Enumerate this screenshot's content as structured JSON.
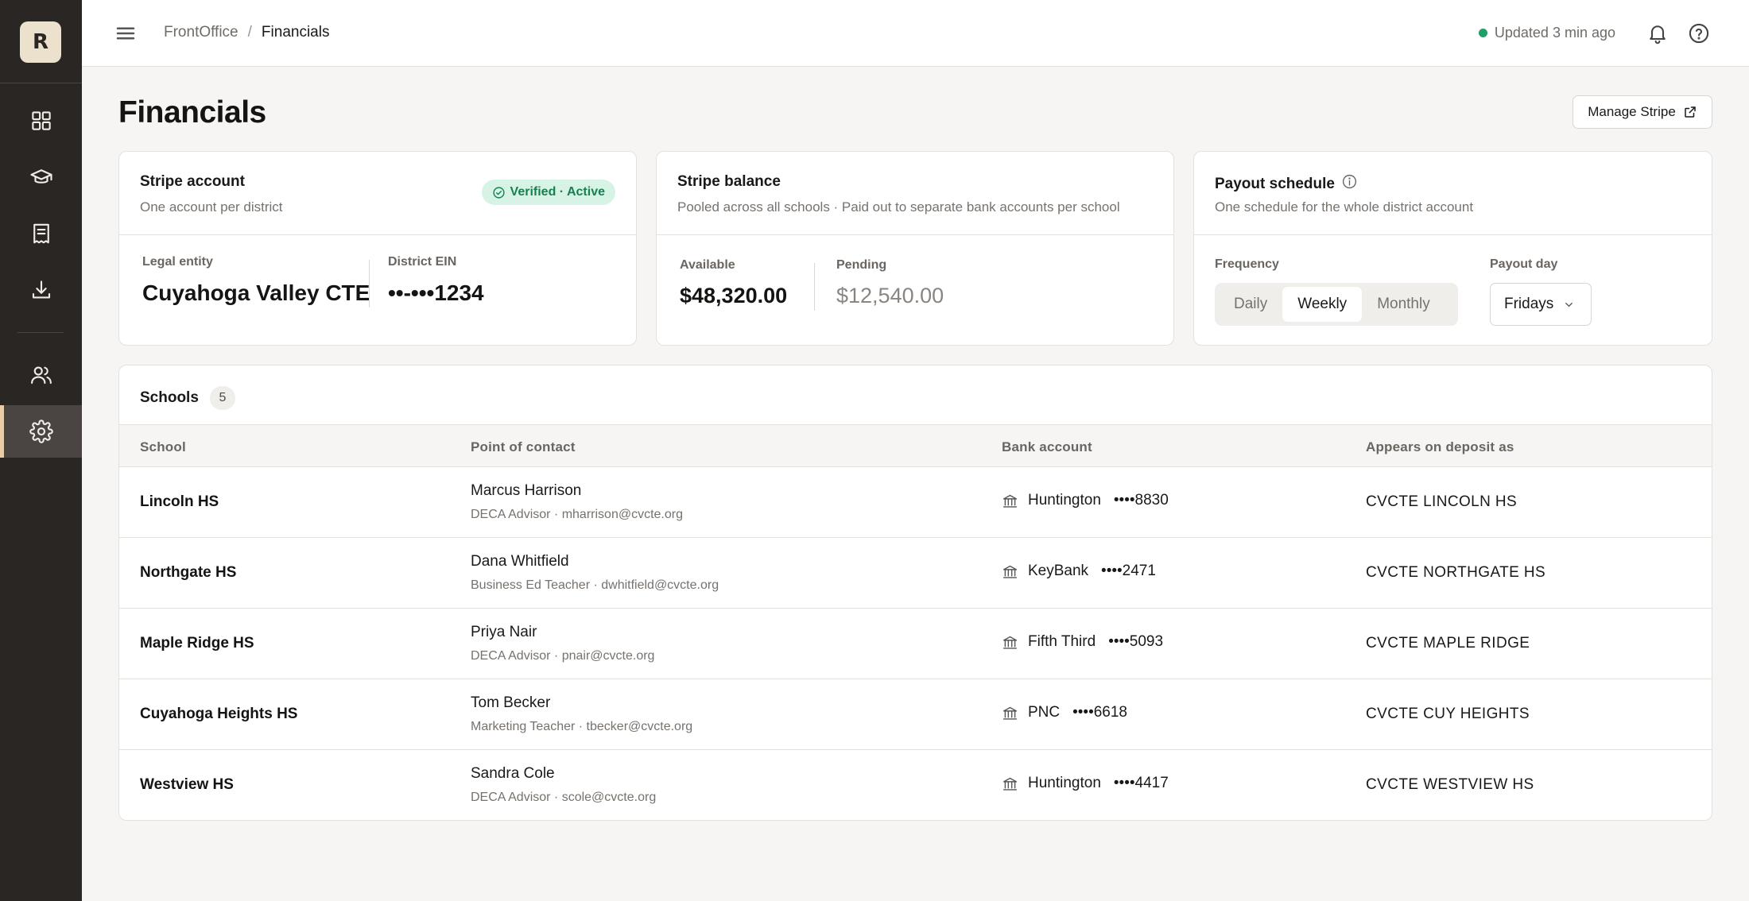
{
  "sidebar": {
    "logo_letter": "R",
    "nav": [
      {
        "name": "dashboard",
        "icon": "grid-icon"
      },
      {
        "name": "programs",
        "icon": "graduation-cap-icon"
      },
      {
        "name": "receipts",
        "icon": "receipt-icon"
      },
      {
        "name": "downloads",
        "icon": "download-icon"
      },
      {
        "name": "people",
        "icon": "users-icon"
      },
      {
        "name": "settings",
        "icon": "gear-icon",
        "active": true
      }
    ],
    "accent": "#e8cda6"
  },
  "topbar": {
    "breadcrumb_root": "FrontOffice",
    "breadcrumb_sep": "/",
    "breadcrumb_current": "Financials",
    "status_text": "Updated 3 min ago",
    "status_color": "#1f9e6a"
  },
  "page": {
    "title": "Financials",
    "manage_button": "Manage Stripe"
  },
  "stripe_account": {
    "title": "Stripe account",
    "subtitle": "One account per district",
    "badge": "Verified · Active",
    "legal_entity_label": "Legal entity",
    "legal_entity_value": "Cuyahoga Valley CTE",
    "ein_label": "District EIN",
    "ein_value": "••-•••1234"
  },
  "stripe_balance": {
    "title": "Stripe balance",
    "subtitle": "Pooled across all schools · Paid out to separate bank accounts per school",
    "available_label": "Available",
    "available_value": "$48,320.00",
    "pending_label": "Pending",
    "pending_value": "$12,540.00"
  },
  "payout": {
    "title": "Payout schedule",
    "subtitle": "One schedule for the whole district account",
    "frequency_label": "Frequency",
    "options": [
      "Daily",
      "Weekly",
      "Monthly"
    ],
    "selected": "Weekly",
    "day_label": "Payout day",
    "day_value": "Fridays"
  },
  "schools": {
    "title": "Schools",
    "count": "5",
    "columns": [
      "School",
      "Point of contact",
      "Bank account",
      "Appears on deposit as"
    ],
    "rows": [
      {
        "school": "Lincoln HS",
        "contact": "Marcus Harrison",
        "meta": "DECA Advisor · mharrison@cvcte.org",
        "bank": "Huntington",
        "acct": "••••8830",
        "deposit": "CVCTE LINCOLN HS"
      },
      {
        "school": "Northgate HS",
        "contact": "Dana Whitfield",
        "meta": "Business Ed Teacher · dwhitfield@cvcte.org",
        "bank": "KeyBank",
        "acct": "••••2471",
        "deposit": "CVCTE NORTHGATE HS"
      },
      {
        "school": "Maple Ridge HS",
        "contact": "Priya Nair",
        "meta": "DECA Advisor · pnair@cvcte.org",
        "bank": "Fifth Third",
        "acct": "••••5093",
        "deposit": "CVCTE MAPLE RIDGE"
      },
      {
        "school": "Cuyahoga Heights HS",
        "contact": "Tom Becker",
        "meta": "Marketing Teacher · tbecker@cvcte.org",
        "bank": "PNC",
        "acct": "••••6618",
        "deposit": "CVCTE CUY HEIGHTS"
      },
      {
        "school": "Westview HS",
        "contact": "Sandra Cole",
        "meta": "DECA Advisor · scole@cvcte.org",
        "bank": "Huntington",
        "acct": "••••4417",
        "deposit": "CVCTE WESTVIEW HS"
      }
    ]
  }
}
